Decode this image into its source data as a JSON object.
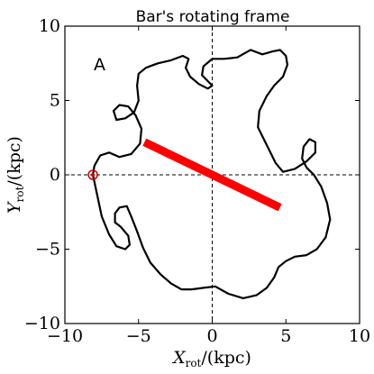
{
  "chart_data": {
    "type": "line",
    "title": "Bar's rotating frame",
    "panel_label": "A",
    "xlabel": {
      "symbol": "X",
      "sub": "rot",
      "unit": "/(kpc)"
    },
    "ylabel": {
      "symbol": "Y",
      "sub": "rot",
      "unit": "/(kpc)"
    },
    "xlim": [
      -10,
      10
    ],
    "ylim": [
      -10,
      10
    ],
    "xticks": [
      -10,
      -5,
      0,
      5,
      10
    ],
    "yticks": [
      -10,
      -5,
      0,
      5,
      10
    ],
    "xtick_labels": [
      "−10",
      "−5",
      "0",
      "5",
      "10"
    ],
    "ytick_labels": [
      "−10",
      "−5",
      "0",
      "5",
      "10"
    ],
    "crosshair": {
      "x": 0,
      "y": 0,
      "style": "dashed"
    },
    "bar": {
      "x": [
        -4.6,
        4.6
      ],
      "y": [
        2.2,
        -2.2
      ],
      "color": "#ff0000"
    },
    "start_marker": {
      "x": -8.1,
      "y": 0.0,
      "color": "#cc0000"
    },
    "orbit": {
      "color": "#000000",
      "x": [
        -8.1,
        -7.8,
        -7.5,
        -7.0,
        -6.5,
        -5.9,
        -5.6,
        -5.7,
        -6.2,
        -6.6,
        -6.6,
        -6.3,
        -5.8,
        -5.5,
        -5.1,
        -4.7,
        -4.2,
        -3.5,
        -2.8,
        -2.1,
        -1.4,
        -0.6,
        0.2,
        1.1,
        2.1,
        3.0,
        3.7,
        4.2,
        4.5,
        5.0,
        5.6,
        6.4,
        7.1,
        7.7,
        8.0,
        7.8,
        7.4,
        6.9,
        6.4,
        6.1,
        6.2,
        6.6,
        7.0,
        7.0,
        6.4,
        5.6,
        4.8,
        4.3,
        3.9,
        3.5,
        3.1,
        3.2,
        3.7,
        4.2,
        4.8,
        5.1,
        5.0,
        4.6,
        4.1,
        3.4,
        2.6,
        1.7,
        0.8,
        0.0,
        -0.6,
        -0.7,
        -0.3,
        0.0,
        -0.3,
        -0.9,
        -1.5,
        -1.8,
        -1.6,
        -2.0,
        -2.8,
        -3.7,
        -4.5,
        -5.0,
        -5.1,
        -5.0,
        -5.3,
        -5.9,
        -6.5,
        -6.7,
        -6.3,
        -5.7,
        -5.2,
        -4.8,
        -4.9,
        -5.5,
        -6.3,
        -7.0,
        -7.6,
        -8.0,
        -8.1
      ],
      "y": [
        0.0,
        -1.4,
        -2.8,
        -4.0,
        -4.8,
        -5.0,
        -4.7,
        -4.1,
        -3.5,
        -3.2,
        -2.6,
        -2.2,
        -2.1,
        -2.8,
        -3.8,
        -4.9,
        -5.9,
        -6.7,
        -7.3,
        -7.7,
        -7.7,
        -7.6,
        -7.5,
        -8.0,
        -8.3,
        -8.1,
        -7.6,
        -6.9,
        -6.2,
        -5.8,
        -5.5,
        -5.4,
        -5.0,
        -4.2,
        -3.0,
        -1.9,
        -0.8,
        0.0,
        0.5,
        1.1,
        1.9,
        2.4,
        2.2,
        1.5,
        0.9,
        0.4,
        0.2,
        0.8,
        1.6,
        2.4,
        3.2,
        4.3,
        5.3,
        6.0,
        6.6,
        7.4,
        8.0,
        8.4,
        8.3,
        8.1,
        8.4,
        7.9,
        7.8,
        7.8,
        7.3,
        6.7,
        6.3,
        6.0,
        5.8,
        6.1,
        6.6,
        7.2,
        7.8,
        8.0,
        7.7,
        7.5,
        7.2,
        6.8,
        6.0,
        5.0,
        4.2,
        3.8,
        3.7,
        4.3,
        4.7,
        4.6,
        4.0,
        3.1,
        2.1,
        1.4,
        1.2,
        1.5,
        1.3,
        0.6,
        0.0
      ]
    }
  }
}
